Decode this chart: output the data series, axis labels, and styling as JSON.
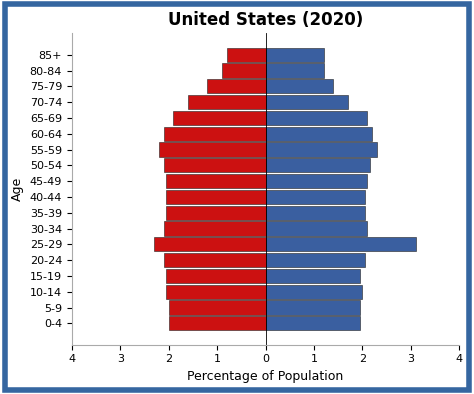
{
  "title": "United States (2020)",
  "xlabel": "Percentage of Population",
  "ylabel": "Age",
  "age_groups": [
    "0-4",
    "5-9",
    "10-14",
    "15-19",
    "20-24",
    "25-29",
    "30-34",
    "35-39",
    "40-44",
    "45-49",
    "50-54",
    "55-59",
    "60-64",
    "65-69",
    "70-74",
    "75-79",
    "80-84",
    "85+"
  ],
  "male": [
    2.0,
    2.0,
    2.05,
    2.05,
    2.1,
    2.3,
    2.1,
    2.05,
    2.05,
    2.05,
    2.1,
    2.2,
    2.1,
    1.9,
    1.6,
    1.2,
    0.9,
    0.8
  ],
  "female": [
    1.95,
    1.95,
    2.0,
    1.95,
    2.05,
    3.1,
    2.1,
    2.05,
    2.05,
    2.1,
    2.15,
    2.3,
    2.2,
    2.1,
    1.7,
    1.4,
    1.2,
    1.2
  ],
  "male_color": "#cc1111",
  "female_color": "#3a5fa0",
  "xlim": 4,
  "background_color": "#ffffff",
  "border_color": "#3566a0",
  "title_fontsize": 12,
  "label_fontsize": 9,
  "tick_fontsize": 8
}
